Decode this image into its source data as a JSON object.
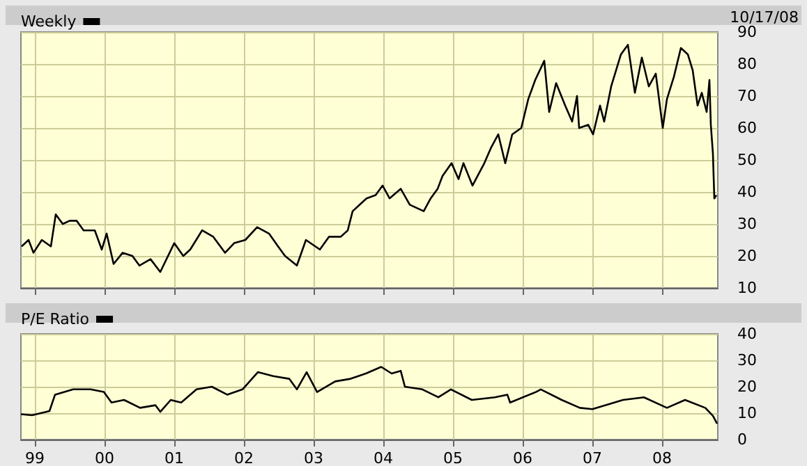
{
  "chart_data": [
    {
      "type": "line",
      "annotations": [
        "10/17/08"
      ],
      "legend": "top left",
      "grid": true,
      "tick_labels": "y",
      "xlim": [
        1998.8,
        2008.8
      ],
      "ylim": [
        10,
        90
      ],
      "yticks": [
        10,
        20,
        30,
        40,
        50,
        60,
        70,
        80,
        90
      ],
      "xticks": [
        {
          "value": 1999,
          "label": null
        },
        {
          "value": 2000,
          "label": null
        },
        {
          "value": 2001,
          "label": null
        },
        {
          "value": 2002,
          "label": null
        },
        {
          "value": 2003,
          "label": null
        },
        {
          "value": 2004,
          "label": null
        },
        {
          "value": 2005,
          "label": null
        },
        {
          "value": 2006,
          "label": null
        },
        {
          "value": 2007,
          "label": null
        },
        {
          "value": 2008,
          "label": null
        }
      ],
      "series": [
        {
          "name": "Weekly",
          "color": "#000000",
          "x": [
            1998.81,
            1998.91,
            1998.98,
            1999.1,
            1999.23,
            1999.3,
            1999.4,
            1999.5,
            1999.6,
            1999.7,
            1999.86,
            1999.96,
            2000.03,
            2000.13,
            2000.26,
            2000.4,
            2000.5,
            2000.66,
            2000.8,
            2001.0,
            2001.13,
            2001.23,
            2001.4,
            2001.56,
            2001.73,
            2001.86,
            2002.02,
            2002.19,
            2002.36,
            2002.49,
            2002.59,
            2002.76,
            2002.89,
            2003.09,
            2003.22,
            2003.39,
            2003.49,
            2003.56,
            2003.76,
            2003.89,
            2003.99,
            2004.09,
            2004.25,
            2004.38,
            2004.58,
            2004.68,
            2004.78,
            2004.85,
            2004.98,
            2005.08,
            2005.15,
            2005.28,
            2005.45,
            2005.55,
            2005.65,
            2005.75,
            2005.85,
            2005.98,
            2006.08,
            2006.18,
            2006.31,
            2006.38,
            2006.48,
            2006.61,
            2006.71,
            2006.78,
            2006.81,
            2006.94,
            2007.01,
            2007.11,
            2007.17,
            2007.27,
            2007.41,
            2007.51,
            2007.61,
            2007.71,
            2007.81,
            2007.91,
            2008.01,
            2008.07,
            2008.17,
            2008.27,
            2008.37,
            2008.44,
            2008.51,
            2008.57,
            2008.64,
            2008.68,
            2008.7,
            2008.73,
            2008.75,
            2008.78
          ],
          "values": [
            23,
            25,
            21,
            25,
            23,
            33,
            30,
            31,
            31,
            28,
            28,
            22,
            27,
            17.5,
            21,
            20,
            17,
            19,
            15,
            24,
            20,
            22,
            28,
            26,
            21,
            24,
            25,
            29,
            27,
            23,
            20,
            17,
            25,
            22,
            26,
            26,
            28,
            34,
            38,
            39,
            42,
            38,
            41,
            36,
            34,
            38,
            41,
            45,
            49,
            44,
            49,
            42,
            49,
            54,
            58,
            49,
            58,
            60,
            69,
            75,
            81,
            65,
            74,
            67,
            62,
            70,
            60,
            61,
            58,
            67,
            62,
            73,
            83,
            86,
            71,
            82,
            73,
            77,
            60,
            69,
            76,
            85,
            83,
            78,
            67,
            71,
            65,
            75,
            61,
            52,
            38,
            39
          ]
        }
      ]
    },
    {
      "type": "line",
      "legend": "top left",
      "grid": true,
      "xlim": [
        1998.8,
        2008.8
      ],
      "ylim": [
        0,
        40
      ],
      "yticks": [
        0,
        10,
        20,
        30,
        40
      ],
      "xticks": [
        {
          "value": 1999,
          "label": "99"
        },
        {
          "value": 2000,
          "label": "00"
        },
        {
          "value": 2001,
          "label": "01"
        },
        {
          "value": 2002,
          "label": "02"
        },
        {
          "value": 2003,
          "label": "03"
        },
        {
          "value": 2004,
          "label": "04"
        },
        {
          "value": 2005,
          "label": "05"
        },
        {
          "value": 2006,
          "label": "06"
        },
        {
          "value": 2007,
          "label": "07"
        },
        {
          "value": 2008,
          "label": "08"
        }
      ],
      "series": [
        {
          "name": "P/E Ratio",
          "color": "#000000",
          "x": [
            1998.8,
            1998.96,
            1999.21,
            1999.29,
            1999.55,
            1999.8,
            1999.99,
            2000.1,
            2000.28,
            2000.51,
            2000.73,
            2000.8,
            2000.95,
            2001.1,
            2001.32,
            2001.54,
            2001.76,
            2001.98,
            2002.2,
            2002.42,
            2002.65,
            2002.76,
            2002.9,
            2003.05,
            2003.31,
            2003.53,
            2003.75,
            2003.97,
            2004.12,
            2004.25,
            2004.31,
            2004.56,
            2004.79,
            2004.97,
            2005.27,
            2005.6,
            2005.78,
            2005.82,
            2006.19,
            2006.26,
            2006.56,
            2006.82,
            2007.0,
            2007.44,
            2007.74,
            2008.07,
            2008.33,
            2008.62,
            2008.73,
            2008.79
          ],
          "values": [
            9.6,
            9.2,
            10.8,
            17,
            19,
            19,
            18,
            14,
            15,
            12,
            13,
            10.5,
            15,
            14,
            19,
            20,
            17,
            19,
            25.5,
            24,
            23,
            19,
            25.5,
            18,
            22,
            23,
            25,
            27.5,
            25,
            26,
            20,
            19,
            16,
            19,
            15,
            16,
            17,
            14,
            18,
            19,
            15,
            12,
            11.5,
            15,
            16,
            12,
            15,
            12,
            9,
            6
          ]
        }
      ]
    }
  ]
}
